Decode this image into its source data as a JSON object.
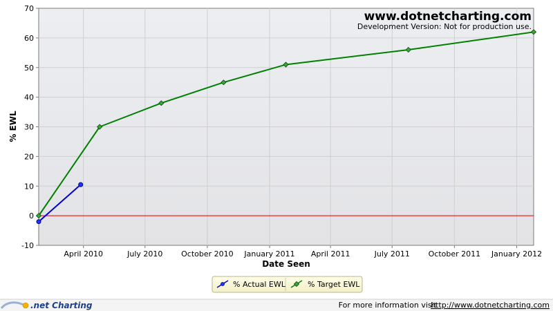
{
  "chart_data": {
    "type": "line",
    "xlabel": "Date Seen",
    "ylabel": "% EWL",
    "ylim": [
      -10,
      70
    ],
    "yticks": [
      -10,
      0,
      10,
      20,
      30,
      40,
      50,
      60,
      70
    ],
    "xlim": [
      "2010-01-25",
      "2012-01-26"
    ],
    "xticks": [
      {
        "date": "2010-04-01",
        "label": "April 2010"
      },
      {
        "date": "2010-07-01",
        "label": "July 2010"
      },
      {
        "date": "2010-10-01",
        "label": "October 2010"
      },
      {
        "date": "2011-01-01",
        "label": "January 2011"
      },
      {
        "date": "2011-04-01",
        "label": "April 2011"
      },
      {
        "date": "2011-07-01",
        "label": "July 2011"
      },
      {
        "date": "2011-10-01",
        "label": "October 2011"
      },
      {
        "date": "2012-01-01",
        "label": "January 2012"
      }
    ],
    "grid": true,
    "reference_line": {
      "y": 0,
      "color": "#e00000"
    },
    "legend_position": "bottom-center",
    "series": [
      {
        "name": "% Actual EWL",
        "color": "#0000dd",
        "marker": "circle",
        "points": [
          {
            "x": "2010-01-25",
            "y": -2
          },
          {
            "x": "2010-03-28",
            "y": 10.5
          }
        ]
      },
      {
        "name": "% Target EWL",
        "color": "#008000",
        "marker": "diamond",
        "points": [
          {
            "x": "2010-01-25",
            "y": 0
          },
          {
            "x": "2010-04-25",
            "y": 30
          },
          {
            "x": "2010-07-25",
            "y": 38
          },
          {
            "x": "2010-10-25",
            "y": 45
          },
          {
            "x": "2011-01-25",
            "y": 51
          },
          {
            "x": "2011-07-25",
            "y": 56
          },
          {
            "x": "2012-01-26",
            "y": 62
          }
        ]
      }
    ]
  },
  "watermark": {
    "title": "www.dotnetcharting.com",
    "subtitle": "Development Version: Not for production use."
  },
  "footer": {
    "brand": ".net Charting",
    "info_text": "For more information visit",
    "link_text": "http://www.dotnetcharting.com"
  }
}
